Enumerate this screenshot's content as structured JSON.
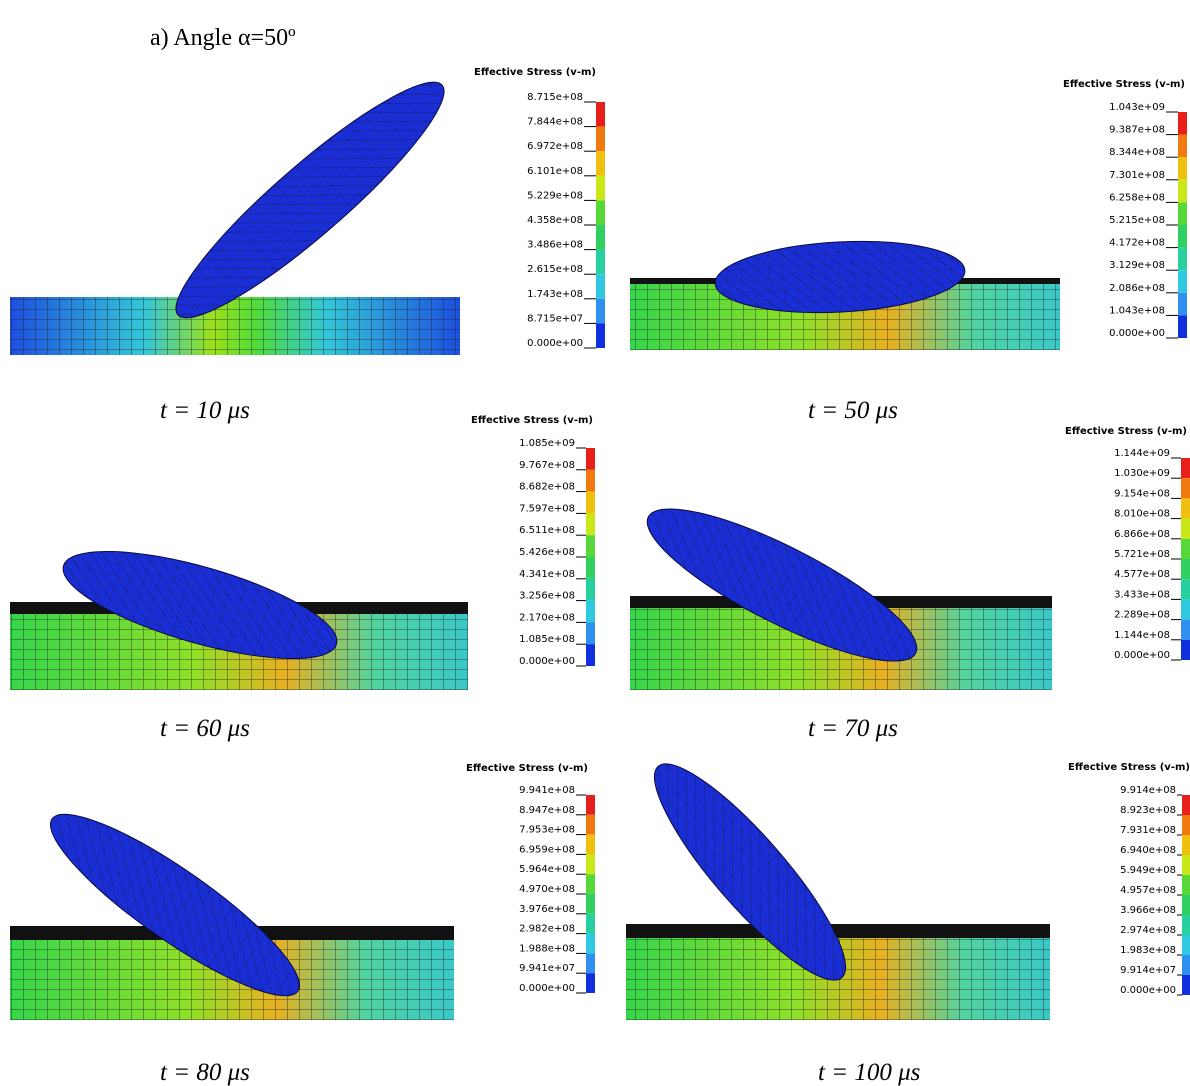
{
  "title": "a) Angle α=50º",
  "panels": [
    {
      "legend_title": "Effective Stress (v-m)",
      "legend_labels": [
        "8.715e+08",
        "7.844e+08",
        "6.972e+08",
        "6.101e+08",
        "5.229e+08",
        "4.358e+08",
        "3.486e+08",
        "2.615e+08",
        "1.743e+08",
        "8.715e+07",
        "0.000e+00"
      ],
      "caption": "t = 10 μs"
    },
    {
      "legend_title": "Effective Stress (v-m)",
      "legend_labels": [
        "1.043e+09",
        "9.387e+08",
        "8.344e+08",
        "7.301e+08",
        "6.258e+08",
        "5.215e+08",
        "4.172e+08",
        "3.129e+08",
        "2.086e+08",
        "1.043e+08",
        "0.000e+00"
      ],
      "caption": "t = 50 μs"
    },
    {
      "legend_title": "Effective Stress (v-m)",
      "legend_labels": [
        "1.085e+09",
        "9.767e+08",
        "8.682e+08",
        "7.597e+08",
        "6.511e+08",
        "5.426e+08",
        "4.341e+08",
        "3.256e+08",
        "2.170e+08",
        "1.085e+08",
        "0.000e+00"
      ],
      "caption": "t = 60 μs"
    },
    {
      "legend_title": "Effective Stress (v-m)",
      "legend_labels": [
        "1.144e+09",
        "1.030e+09",
        "9.154e+08",
        "8.010e+08",
        "6.866e+08",
        "5.721e+08",
        "4.577e+08",
        "3.433e+08",
        "2.289e+08",
        "1.144e+08",
        "0.000e+00"
      ],
      "caption": "t = 70 μs"
    },
    {
      "legend_title": "Effective Stress (v-m)",
      "legend_labels": [
        "9.941e+08",
        "8.947e+08",
        "7.953e+08",
        "6.959e+08",
        "5.964e+08",
        "4.970e+08",
        "3.976e+08",
        "2.982e+08",
        "1.988e+08",
        "9.941e+07",
        "0.000e+00"
      ],
      "caption": "t = 80 μs"
    },
    {
      "legend_title": "Effective Stress (v-m)",
      "legend_labels": [
        "9.914e+08",
        "8.923e+08",
        "7.931e+08",
        "6.940e+08",
        "5.949e+08",
        "4.957e+08",
        "3.966e+08",
        "2.974e+08",
        "1.983e+08",
        "9.914e+07",
        "0.000e+00"
      ],
      "caption": "t = 100 μs"
    }
  ]
}
